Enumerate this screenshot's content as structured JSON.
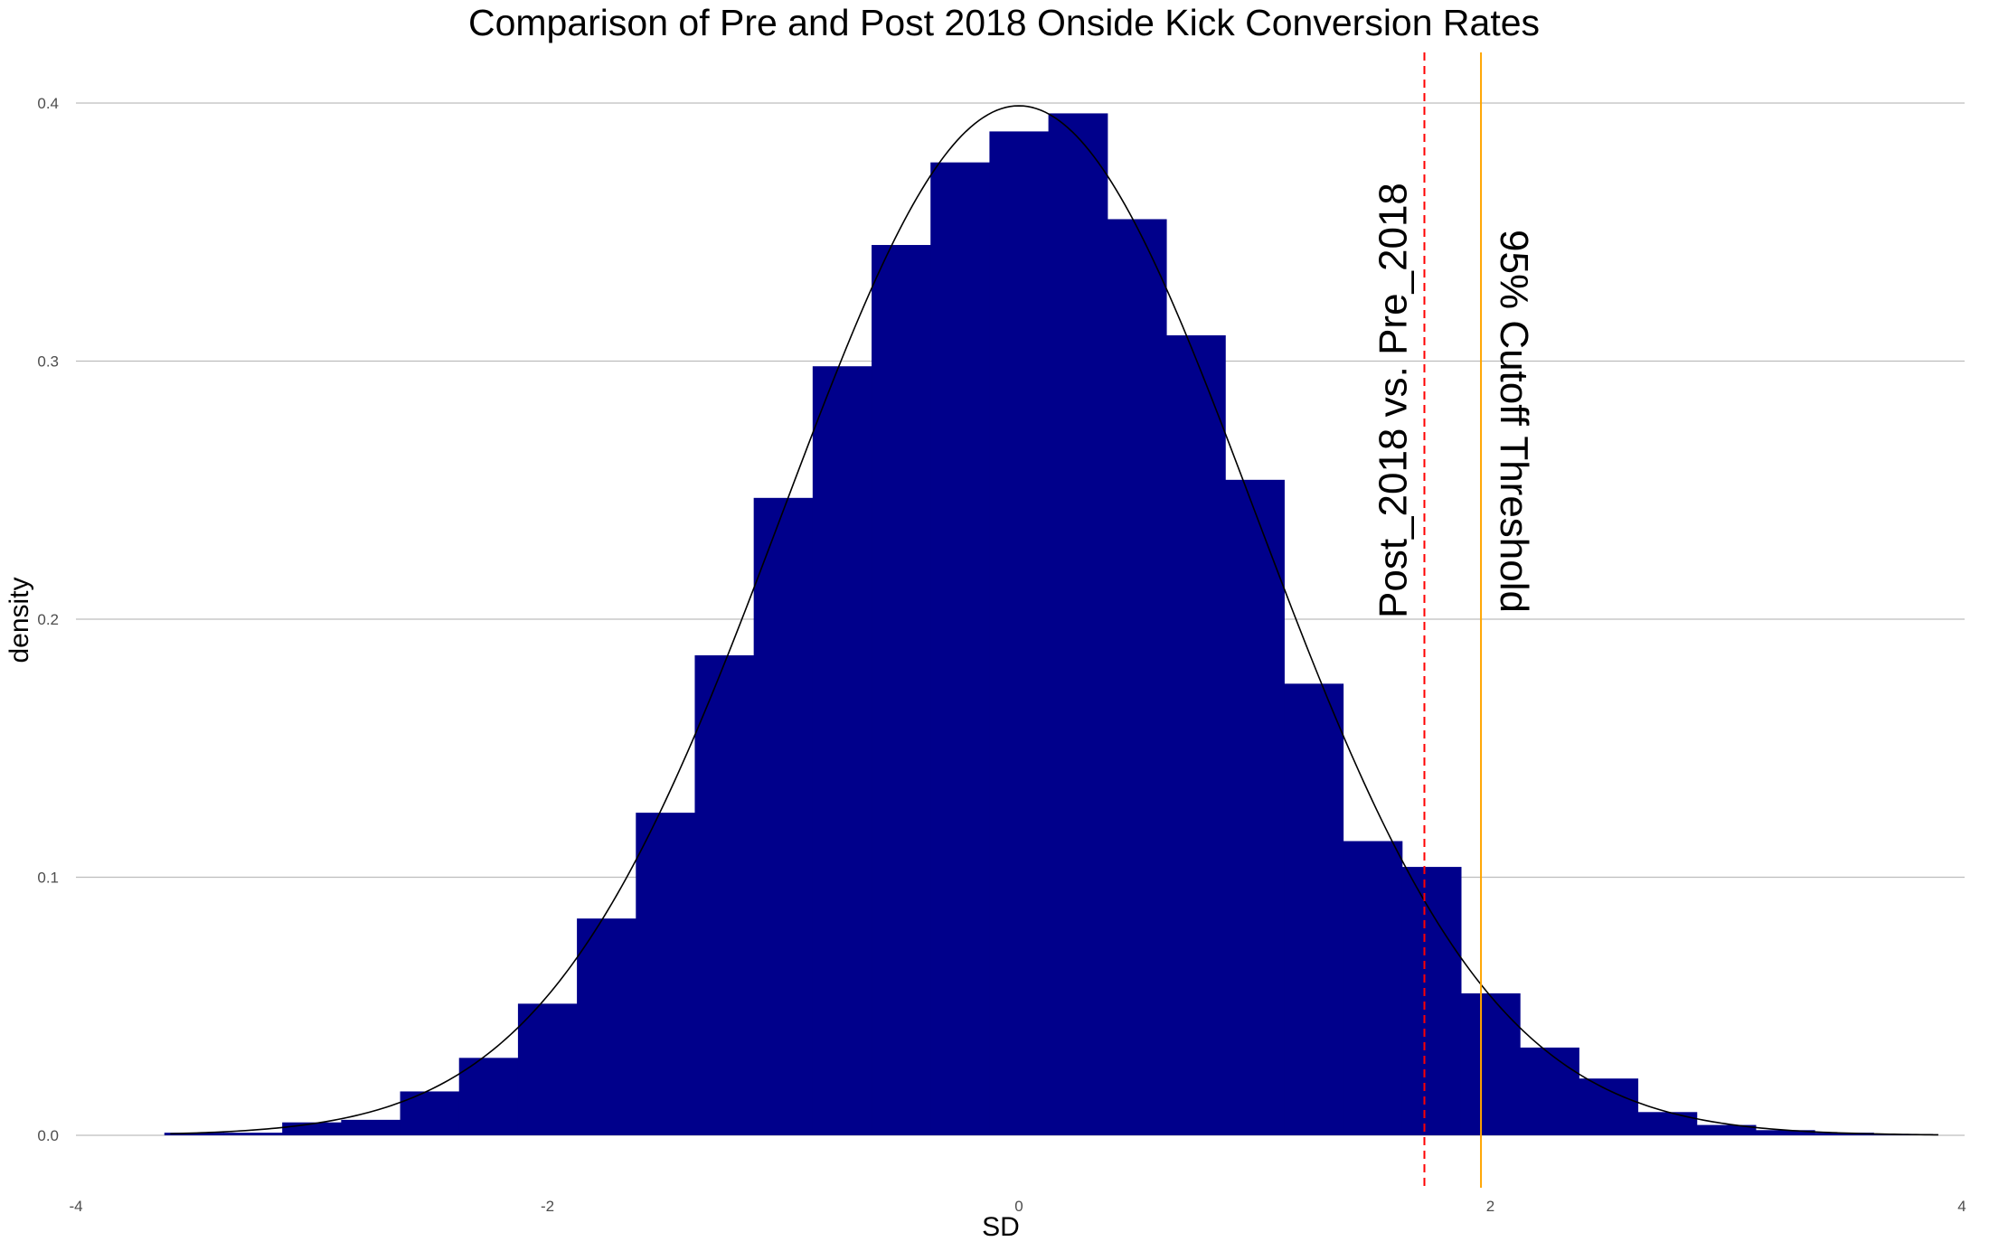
{
  "chart_data": {
    "type": "bar",
    "title": "Comparison of Pre and Post 2018 Onside Kick Conversion Rates",
    "xlabel": "SD",
    "ylabel": "density",
    "xlim": [
      -4,
      4
    ],
    "ylim": [
      0,
      0.4
    ],
    "x_ticks": [
      -4,
      -2,
      0,
      2,
      4
    ],
    "y_ticks": [
      0.0,
      0.1,
      0.2,
      0.3,
      0.4
    ],
    "x_tick_labels": [
      "-4",
      "-2",
      "0",
      "2",
      "4"
    ],
    "y_tick_labels": [
      "0.0",
      "0.1",
      "0.2",
      "0.3",
      "0.4"
    ],
    "grid": "horizontal-major",
    "bar_color": "#00008B",
    "histogram": {
      "bin_width": 0.25,
      "bins": [
        {
          "x0": -3.625,
          "x1": -3.375,
          "density": 0.001
        },
        {
          "x0": -3.375,
          "x1": -3.125,
          "density": 0.001
        },
        {
          "x0": -3.125,
          "x1": -2.875,
          "density": 0.005
        },
        {
          "x0": -2.875,
          "x1": -2.625,
          "density": 0.006
        },
        {
          "x0": -2.625,
          "x1": -2.375,
          "density": 0.017
        },
        {
          "x0": -2.375,
          "x1": -2.125,
          "density": 0.03
        },
        {
          "x0": -2.125,
          "x1": -1.875,
          "density": 0.051
        },
        {
          "x0": -1.875,
          "x1": -1.625,
          "density": 0.084
        },
        {
          "x0": -1.625,
          "x1": -1.375,
          "density": 0.125
        },
        {
          "x0": -1.375,
          "x1": -1.125,
          "density": 0.186
        },
        {
          "x0": -1.125,
          "x1": -0.875,
          "density": 0.247
        },
        {
          "x0": -0.875,
          "x1": -0.625,
          "density": 0.298
        },
        {
          "x0": -0.625,
          "x1": -0.375,
          "density": 0.345
        },
        {
          "x0": -0.375,
          "x1": -0.125,
          "density": 0.377
        },
        {
          "x0": -0.125,
          "x1": 0.125,
          "density": 0.389
        },
        {
          "x0": 0.125,
          "x1": 0.375,
          "density": 0.396
        },
        {
          "x0": 0.375,
          "x1": 0.625,
          "density": 0.355
        },
        {
          "x0": 0.625,
          "x1": 0.875,
          "density": 0.31
        },
        {
          "x0": 0.875,
          "x1": 1.125,
          "density": 0.254
        },
        {
          "x0": 1.125,
          "x1": 1.375,
          "density": 0.175
        },
        {
          "x0": 1.375,
          "x1": 1.625,
          "density": 0.114
        },
        {
          "x0": 1.625,
          "x1": 1.875,
          "density": 0.104
        },
        {
          "x0": 1.875,
          "x1": 2.125,
          "density": 0.055
        },
        {
          "x0": 2.125,
          "x1": 2.375,
          "density": 0.034
        },
        {
          "x0": 2.375,
          "x1": 2.625,
          "density": 0.022
        },
        {
          "x0": 2.625,
          "x1": 2.875,
          "density": 0.009
        },
        {
          "x0": 2.875,
          "x1": 3.125,
          "density": 0.004
        },
        {
          "x0": 3.125,
          "x1": 3.375,
          "density": 0.002
        },
        {
          "x0": 3.375,
          "x1": 3.625,
          "density": 0.001
        },
        {
          "x0": 3.625,
          "x1": 3.875,
          "density": 0.0005
        }
      ]
    },
    "curve": {
      "type": "normal-density",
      "mean": 0,
      "sd": 1,
      "x_range": [
        -3.6,
        3.9
      ],
      "color": "#000000"
    },
    "reference_lines": [
      {
        "x": 1.72,
        "label": "Post_2018 vs. Pre_2018",
        "color": "#FF0000",
        "style": "dashed"
      },
      {
        "x": 1.96,
        "label": "95% Cutoff Threshold",
        "color": "#FFA500",
        "style": "solid"
      }
    ]
  }
}
